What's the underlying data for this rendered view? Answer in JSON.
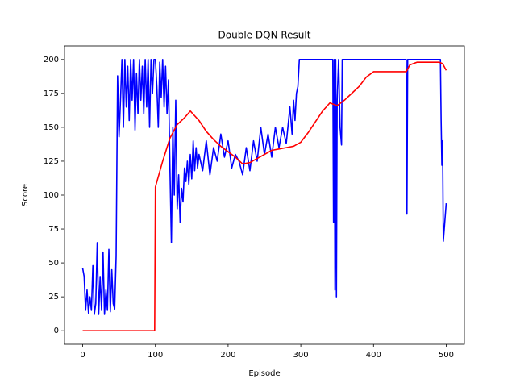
{
  "chart_data": {
    "type": "line",
    "title": "Double DQN Result",
    "x_label": "Episode",
    "y_label": "Score",
    "xlim": [
      -25,
      525
    ],
    "ylim": [
      -10,
      210
    ],
    "xticks": [
      0,
      100,
      200,
      300,
      400,
      500
    ],
    "yticks": [
      0,
      25,
      50,
      75,
      100,
      125,
      150,
      175,
      200
    ],
    "grid": false,
    "series": [
      {
        "color": "#0000ff",
        "x": [
          0,
          2,
          4,
          6,
          8,
          10,
          12,
          14,
          16,
          18,
          20,
          22,
          24,
          26,
          28,
          30,
          32,
          34,
          36,
          38,
          40,
          42,
          44,
          46,
          48,
          50,
          52,
          54,
          56,
          58,
          60,
          62,
          64,
          66,
          68,
          70,
          72,
          74,
          76,
          78,
          80,
          82,
          84,
          86,
          88,
          90,
          92,
          94,
          96,
          98,
          100,
          102,
          104,
          106,
          108,
          110,
          112,
          114,
          116,
          118,
          120,
          122,
          124,
          126,
          128,
          130,
          132,
          134,
          136,
          138,
          140,
          142,
          144,
          146,
          148,
          150,
          152,
          154,
          156,
          158,
          160,
          165,
          170,
          175,
          180,
          185,
          190,
          195,
          200,
          205,
          210,
          215,
          220,
          225,
          230,
          235,
          240,
          245,
          250,
          255,
          260,
          265,
          270,
          275,
          280,
          285,
          288,
          290,
          292,
          294,
          296,
          298,
          300,
          310,
          320,
          330,
          340,
          344,
          345,
          346,
          347,
          348,
          349,
          350,
          352,
          354,
          356,
          357,
          360,
          380,
          400,
          420,
          440,
          445,
          446,
          447,
          460,
          480,
          492,
          493,
          494,
          495,
          496,
          498,
          500
        ],
        "values": [
          46,
          40,
          15,
          30,
          13,
          25,
          15,
          48,
          12,
          20,
          65,
          12,
          40,
          15,
          58,
          12,
          30,
          15,
          60,
          14,
          45,
          20,
          16,
          55,
          188,
          143,
          170,
          200,
          150,
          200,
          165,
          195,
          155,
          200,
          170,
          200,
          148,
          190,
          160,
          200,
          170,
          195,
          160,
          200,
          165,
          200,
          150,
          200,
          175,
          200,
          200,
          180,
          150,
          198,
          172,
          200,
          165,
          195,
          160,
          185,
          120,
          65,
          150,
          100,
          170,
          90,
          115,
          80,
          105,
          95,
          120,
          110,
          125,
          108,
          130,
          112,
          140,
          118,
          135,
          120,
          130,
          118,
          140,
          115,
          135,
          125,
          145,
          128,
          140,
          120,
          130,
          125,
          115,
          135,
          118,
          140,
          125,
          150,
          130,
          145,
          128,
          150,
          135,
          150,
          138,
          165,
          145,
          170,
          155,
          175,
          180,
          200,
          200,
          200,
          200,
          200,
          200,
          200,
          80,
          200,
          30,
          200,
          25,
          170,
          200,
          150,
          137,
          200,
          200,
          200,
          200,
          200,
          200,
          200,
          86,
          200,
          200,
          200,
          200,
          155,
          122,
          140,
          66,
          80,
          94
        ]
      },
      {
        "color": "#ff0000",
        "x": [
          0,
          99,
          100,
          110,
          120,
          130,
          140,
          148,
          160,
          170,
          180,
          190,
          200,
          210,
          220,
          230,
          240,
          250,
          260,
          270,
          280,
          290,
          300,
          310,
          320,
          330,
          340,
          345,
          350,
          360,
          370,
          380,
          390,
          400,
          410,
          420,
          430,
          440,
          445,
          450,
          460,
          470,
          480,
          490,
          495,
          500
        ],
        "values": [
          0,
          0,
          106,
          125,
          142,
          152,
          157,
          162,
          155,
          147,
          141,
          136,
          132,
          128,
          123,
          124,
          127,
          130,
          133,
          134,
          135,
          136,
          139,
          146,
          154,
          162,
          168,
          167,
          166,
          170,
          175,
          180,
          187,
          191,
          191,
          191,
          191,
          191,
          191,
          196,
          198,
          198,
          198,
          198,
          197,
          192
        ]
      }
    ]
  }
}
